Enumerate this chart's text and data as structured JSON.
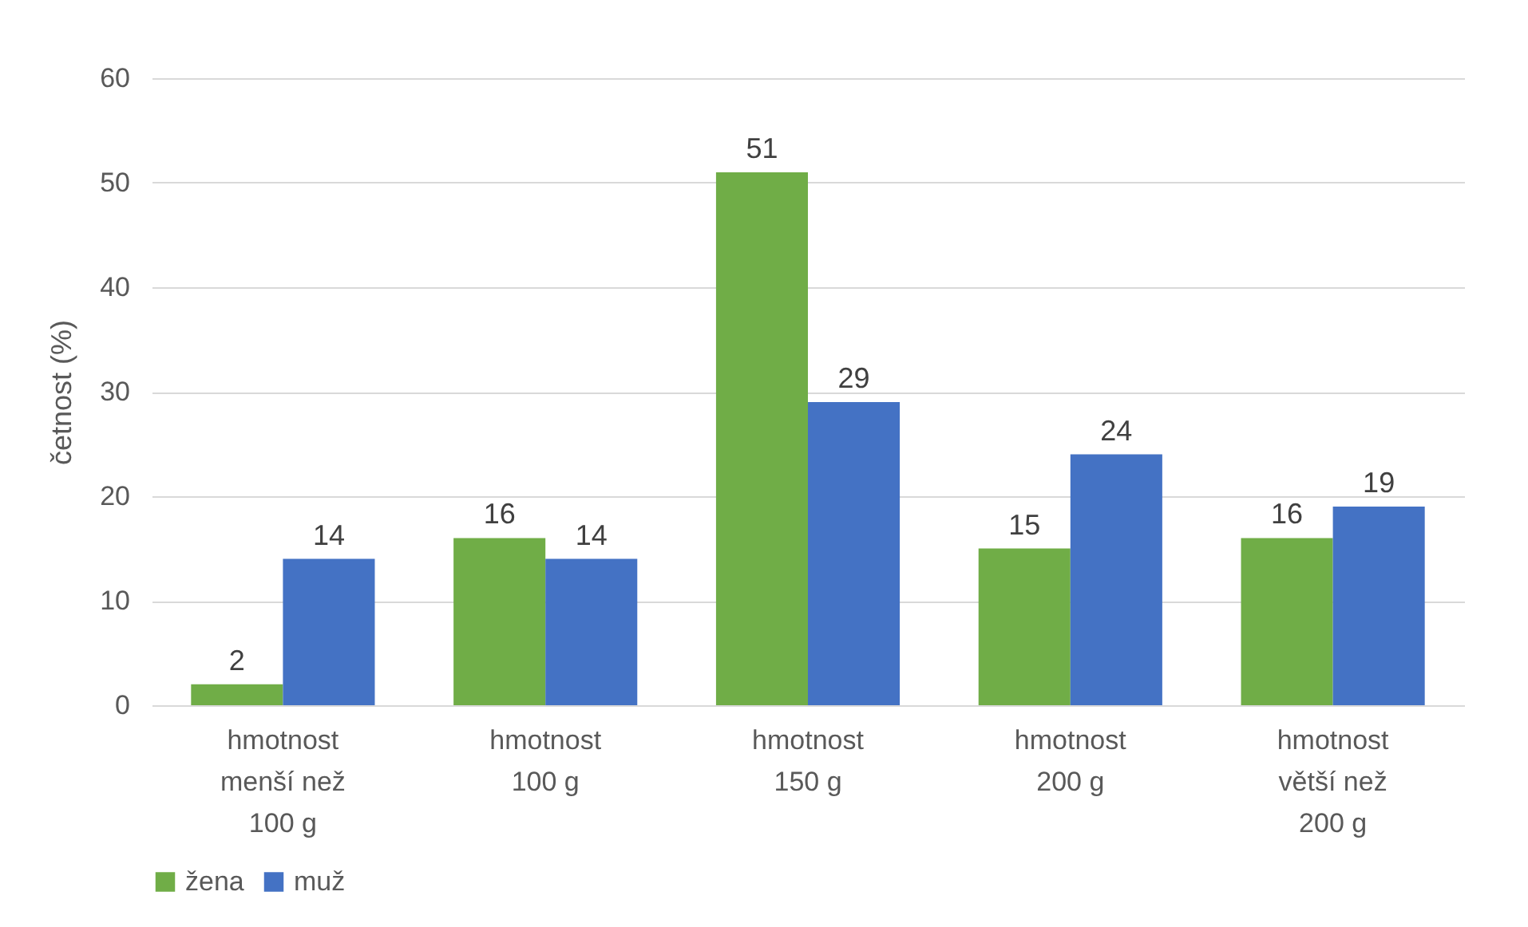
{
  "chart_data": {
    "type": "bar",
    "ylabel": "četnost (%)",
    "categories": [
      "hmotnost menší než 100 g",
      "hmotnost 100 g",
      "hmotnost 150 g",
      "hmotnost 200 g",
      "hmotnost větší než 200 g"
    ],
    "series": [
      {
        "name": "žena",
        "color": "#70ad47",
        "values": [
          2,
          16,
          51,
          15,
          16
        ]
      },
      {
        "name": "muž",
        "color": "#4472c4",
        "values": [
          14,
          14,
          29,
          24,
          19
        ]
      }
    ],
    "ylim": [
      0,
      60
    ],
    "yticks": [
      0,
      10,
      20,
      30,
      40,
      50,
      60
    ],
    "grid": "y",
    "legend": "bottom",
    "data_labels": true
  }
}
